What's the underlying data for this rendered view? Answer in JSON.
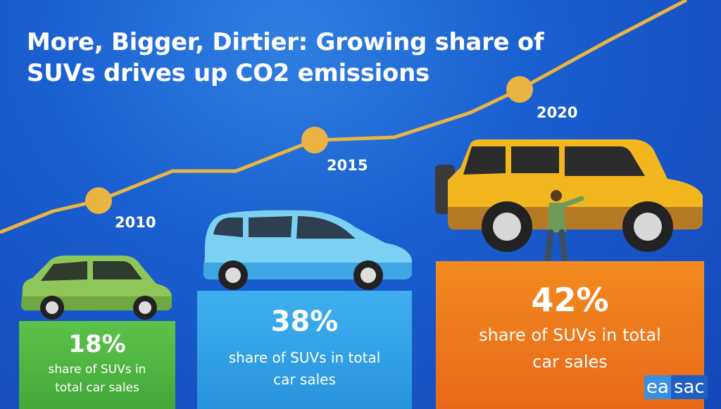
{
  "title": "More, Bigger, Dirtier: Growing share of SUVs drives up CO2 emissions",
  "chart_data": {
    "type": "bar",
    "title": "More, Bigger, Dirtier: Growing share of SUVs drives up CO2 emissions",
    "categories": [
      "2010",
      "2015",
      "2020"
    ],
    "values": [
      18,
      38,
      42
    ],
    "value_labels": [
      "18%",
      "38%",
      "42%"
    ],
    "bar_label_text": [
      "share of SUVs in total car sales",
      "share of SUVs in total car sales",
      "share of SUVs in total car sales"
    ],
    "bar_colors": [
      "#4db43f",
      "#33a3e8",
      "#ee7a1c"
    ],
    "trend_line_color": "#e9b443",
    "ylim": [
      0,
      50
    ]
  },
  "logo": {
    "left": "ea",
    "right": "sac"
  },
  "colors": {
    "background": "#1a5fd0",
    "accent": "#e9b443"
  }
}
